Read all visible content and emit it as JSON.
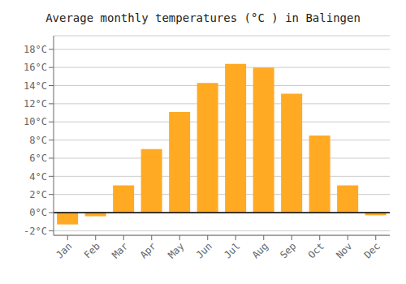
{
  "chart_data": {
    "type": "bar",
    "title": "Average monthly temperatures (°C ) in Balingen",
    "categories": [
      "Jan",
      "Feb",
      "Mar",
      "Apr",
      "May",
      "Jun",
      "Jul",
      "Aug",
      "Sep",
      "Oct",
      "Nov",
      "Dec"
    ],
    "values": [
      -1.3,
      -0.4,
      3.0,
      7.0,
      11.1,
      14.3,
      16.4,
      16.0,
      13.1,
      8.5,
      3.0,
      -0.3
    ],
    "color": "#FFAA22",
    "ylim": [
      -2.5,
      19.5
    ],
    "yticks": [
      {
        "value": -2,
        "label": "-2°C"
      },
      {
        "value": 0,
        "label": "0°C"
      },
      {
        "value": 2,
        "label": "2°C"
      },
      {
        "value": 4,
        "label": "4°C"
      },
      {
        "value": 6,
        "label": "6°C"
      },
      {
        "value": 8,
        "label": "8°C"
      },
      {
        "value": 10,
        "label": "10°C"
      },
      {
        "value": 12,
        "label": "12°C"
      },
      {
        "value": 14,
        "label": "14°C"
      },
      {
        "value": 16,
        "label": "16°C"
      },
      {
        "value": 18,
        "label": "18°C"
      }
    ],
    "grid": true
  }
}
